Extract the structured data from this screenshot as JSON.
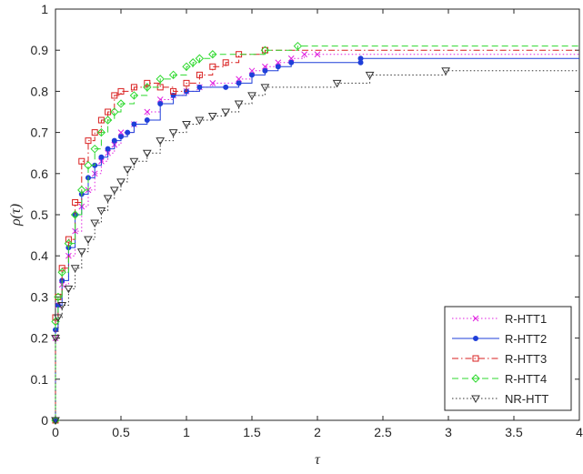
{
  "chart_data": {
    "type": "line",
    "title": "",
    "xlabel": "τ",
    "ylabel": "ρ(τ)",
    "xlim": [
      0,
      4
    ],
    "ylim": [
      0,
      1
    ],
    "xticks": [
      0,
      0.5,
      1,
      1.5,
      2,
      2.5,
      3,
      3.5,
      4
    ],
    "xtick_labels": [
      "0",
      "0.5",
      "1",
      "1.5",
      "2",
      "2.5",
      "3",
      "3.5",
      "4"
    ],
    "yticks": [
      0,
      0.1,
      0.2,
      0.3,
      0.4,
      0.5,
      0.6,
      0.7,
      0.8,
      0.9,
      1
    ],
    "ytick_labels": [
      "0",
      "0.1",
      "0.2",
      "0.3",
      "0.4",
      "0.5",
      "0.6",
      "0.7",
      "0.8",
      "0.9",
      "1"
    ],
    "grid": false,
    "legend_position": "bottom-right",
    "series": [
      {
        "name": "R-HTT1",
        "color": "#e01fe0",
        "line_style": "dotted",
        "marker": "x",
        "points": [
          [
            0,
            0
          ],
          [
            0,
            0.2
          ],
          [
            0.02,
            0.28
          ],
          [
            0.05,
            0.33
          ],
          [
            0.1,
            0.4
          ],
          [
            0.15,
            0.46
          ],
          [
            0.2,
            0.52
          ],
          [
            0.25,
            0.56
          ],
          [
            0.3,
            0.6
          ],
          [
            0.35,
            0.63
          ],
          [
            0.4,
            0.65
          ],
          [
            0.45,
            0.67
          ],
          [
            0.5,
            0.7
          ],
          [
            0.6,
            0.72
          ],
          [
            0.7,
            0.75
          ],
          [
            0.8,
            0.78
          ],
          [
            0.9,
            0.79
          ],
          [
            1.0,
            0.8
          ],
          [
            1.1,
            0.81
          ],
          [
            1.2,
            0.82
          ],
          [
            1.4,
            0.83
          ],
          [
            1.5,
            0.85
          ],
          [
            1.6,
            0.86
          ],
          [
            1.7,
            0.87
          ],
          [
            1.8,
            0.88
          ],
          [
            1.9,
            0.89
          ],
          [
            2.0,
            0.89
          ],
          [
            4.0,
            0.89
          ]
        ]
      },
      {
        "name": "R-HTT2",
        "color": "#1f3fd9",
        "line_style": "solid",
        "marker": "dot",
        "points": [
          [
            0,
            0
          ],
          [
            0,
            0.22
          ],
          [
            0.02,
            0.28
          ],
          [
            0.05,
            0.34
          ],
          [
            0.1,
            0.42
          ],
          [
            0.15,
            0.5
          ],
          [
            0.2,
            0.55
          ],
          [
            0.25,
            0.59
          ],
          [
            0.3,
            0.62
          ],
          [
            0.35,
            0.64
          ],
          [
            0.4,
            0.66
          ],
          [
            0.45,
            0.68
          ],
          [
            0.5,
            0.69
          ],
          [
            0.55,
            0.7
          ],
          [
            0.6,
            0.72
          ],
          [
            0.7,
            0.73
          ],
          [
            0.8,
            0.77
          ],
          [
            0.9,
            0.79
          ],
          [
            1.0,
            0.8
          ],
          [
            1.1,
            0.81
          ],
          [
            1.3,
            0.81
          ],
          [
            1.4,
            0.82
          ],
          [
            1.5,
            0.84
          ],
          [
            1.6,
            0.85
          ],
          [
            1.7,
            0.86
          ],
          [
            1.8,
            0.87
          ],
          [
            2.33,
            0.87
          ],
          [
            2.33,
            0.88
          ],
          [
            4.0,
            0.88
          ]
        ]
      },
      {
        "name": "R-HTT3",
        "color": "#d91f1f",
        "line_style": "dashdot",
        "marker": "square",
        "points": [
          [
            0,
            0
          ],
          [
            0,
            0.25
          ],
          [
            0.02,
            0.3
          ],
          [
            0.05,
            0.37
          ],
          [
            0.1,
            0.44
          ],
          [
            0.15,
            0.53
          ],
          [
            0.2,
            0.63
          ],
          [
            0.25,
            0.68
          ],
          [
            0.3,
            0.7
          ],
          [
            0.35,
            0.73
          ],
          [
            0.4,
            0.75
          ],
          [
            0.45,
            0.79
          ],
          [
            0.5,
            0.8
          ],
          [
            0.6,
            0.81
          ],
          [
            0.7,
            0.82
          ],
          [
            0.8,
            0.81
          ],
          [
            0.9,
            0.8
          ],
          [
            1.0,
            0.82
          ],
          [
            1.1,
            0.84
          ],
          [
            1.2,
            0.86
          ],
          [
            1.3,
            0.87
          ],
          [
            1.4,
            0.89
          ],
          [
            1.6,
            0.9
          ],
          [
            4.0,
            0.9
          ]
        ]
      },
      {
        "name": "R-HTT4",
        "color": "#2fd92f",
        "line_style": "dashed",
        "marker": "diamond",
        "points": [
          [
            0,
            0
          ],
          [
            0,
            0.24
          ],
          [
            0.02,
            0.3
          ],
          [
            0.05,
            0.36
          ],
          [
            0.1,
            0.43
          ],
          [
            0.15,
            0.5
          ],
          [
            0.2,
            0.56
          ],
          [
            0.25,
            0.62
          ],
          [
            0.3,
            0.66
          ],
          [
            0.35,
            0.7
          ],
          [
            0.4,
            0.73
          ],
          [
            0.45,
            0.75
          ],
          [
            0.5,
            0.77
          ],
          [
            0.6,
            0.79
          ],
          [
            0.7,
            0.81
          ],
          [
            0.8,
            0.83
          ],
          [
            0.9,
            0.84
          ],
          [
            1.0,
            0.86
          ],
          [
            1.05,
            0.87
          ],
          [
            1.1,
            0.88
          ],
          [
            1.2,
            0.89
          ],
          [
            1.6,
            0.9
          ],
          [
            1.85,
            0.91
          ],
          [
            4.0,
            0.91
          ]
        ]
      },
      {
        "name": "NR-HTT",
        "color": "#333333",
        "line_style": "dotted",
        "marker": "triangle-down",
        "points": [
          [
            0,
            0
          ],
          [
            0,
            0.2
          ],
          [
            0.02,
            0.25
          ],
          [
            0.05,
            0.28
          ],
          [
            0.1,
            0.32
          ],
          [
            0.15,
            0.37
          ],
          [
            0.2,
            0.41
          ],
          [
            0.25,
            0.44
          ],
          [
            0.3,
            0.48
          ],
          [
            0.35,
            0.51
          ],
          [
            0.4,
            0.54
          ],
          [
            0.45,
            0.56
          ],
          [
            0.5,
            0.58
          ],
          [
            0.55,
            0.61
          ],
          [
            0.6,
            0.63
          ],
          [
            0.7,
            0.65
          ],
          [
            0.8,
            0.68
          ],
          [
            0.9,
            0.7
          ],
          [
            1.0,
            0.72
          ],
          [
            1.1,
            0.73
          ],
          [
            1.2,
            0.74
          ],
          [
            1.3,
            0.75
          ],
          [
            1.4,
            0.77
          ],
          [
            1.5,
            0.79
          ],
          [
            1.6,
            0.81
          ],
          [
            2.15,
            0.82
          ],
          [
            2.4,
            0.84
          ],
          [
            2.98,
            0.85
          ],
          [
            4.0,
            0.85
          ]
        ]
      }
    ]
  }
}
